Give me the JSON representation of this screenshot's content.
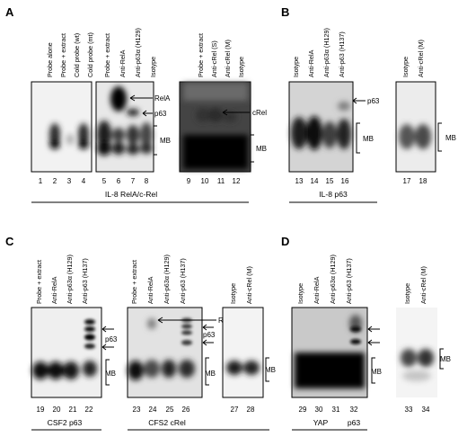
{
  "panels": [
    {
      "letter": "A",
      "gels": [
        {
          "lanes": [
            {
              "number": "1",
              "label": "Probe alone"
            },
            {
              "number": "2",
              "label": "Probe + extract"
            },
            {
              "number": "3",
              "label": "Cold probe (wt)"
            },
            {
              "number": "4",
              "label": "Cold probe (mt)"
            }
          ]
        },
        {
          "lanes": [
            {
              "number": "5",
              "label": "Probe + extract"
            },
            {
              "number": "6",
              "label": "Anti-RelA"
            },
            {
              "number": "7",
              "label": "Anti-p63α (H129)"
            },
            {
              "number": "8",
              "label": "Isotype"
            }
          ],
          "annotations": [
            "RelA",
            "p63",
            "MB"
          ]
        },
        {
          "lanes": [
            {
              "number": "9",
              "label": "Probe + extract"
            },
            {
              "number": "10",
              "label": "Anti-cRel (S)"
            },
            {
              "number": "11",
              "label": "Anti-cRel (M)"
            },
            {
              "number": "12",
              "label": "Isotype"
            }
          ],
          "annotations": [
            "cRel",
            "MB"
          ]
        }
      ],
      "captions": [
        "IL-8 RelA/c-Rel"
      ]
    },
    {
      "letter": "B",
      "gels": [
        {
          "lanes": [
            {
              "number": "13",
              "label": "Isotype"
            },
            {
              "number": "14",
              "label": "Anti-RelA"
            },
            {
              "number": "15",
              "label": "Anti-p63α (H129)"
            },
            {
              "number": "16",
              "label": "Anti-p63 (H137)"
            }
          ],
          "annotations": [
            "p63",
            "MB"
          ]
        },
        {
          "lanes": [
            {
              "number": "17",
              "label": "Isotype"
            },
            {
              "number": "18",
              "label": "Anti-cRel (M)"
            }
          ],
          "annotations": [
            "MB"
          ]
        }
      ],
      "captions": [
        "IL-8 p63"
      ]
    },
    {
      "letter": "C",
      "gels": [
        {
          "lanes": [
            {
              "number": "19",
              "label": "Probe + extract"
            },
            {
              "number": "20",
              "label": "Anti-RelA"
            },
            {
              "number": "21",
              "label": "Anti-p63α (H129)"
            },
            {
              "number": "22",
              "label": "Anti-p63 (H137)"
            }
          ],
          "annotations": [
            "p63",
            "MB"
          ]
        },
        {
          "lanes": [
            {
              "number": "23",
              "label": "Probe + extract"
            },
            {
              "number": "24",
              "label": "Anti-RelA"
            },
            {
              "number": "25",
              "label": "Anti-p63α (H129)"
            },
            {
              "number": "26",
              "label": "Anti-p63 (H137)"
            }
          ],
          "annotations": [
            "RelA",
            "p63",
            "MB"
          ]
        },
        {
          "lanes": [
            {
              "number": "27",
              "label": "Isotype"
            },
            {
              "number": "28",
              "label": "Anti-cRel (M)"
            }
          ],
          "annotations": [
            "MB"
          ]
        }
      ],
      "captions": [
        "CSF2 p63",
        "CFS2 cRel"
      ]
    },
    {
      "letter": "D",
      "gels": [
        {
          "lanes": [
            {
              "number": "29",
              "label": "Isotype"
            },
            {
              "number": "30",
              "label": "Anti-RelA"
            },
            {
              "number": "31",
              "label": "Anti-p63α (H129)"
            },
            {
              "number": "32",
              "label": "Anti-p63 (H137)"
            }
          ],
          "annotations": [
            "MB"
          ]
        },
        {
          "lanes": [
            {
              "number": "33",
              "label": "Isotype"
            },
            {
              "number": "34",
              "label": "Anti-cRel (M)"
            }
          ],
          "annotations": [
            "MB"
          ]
        }
      ],
      "captions": [
        "YAP",
        "p63"
      ]
    }
  ]
}
